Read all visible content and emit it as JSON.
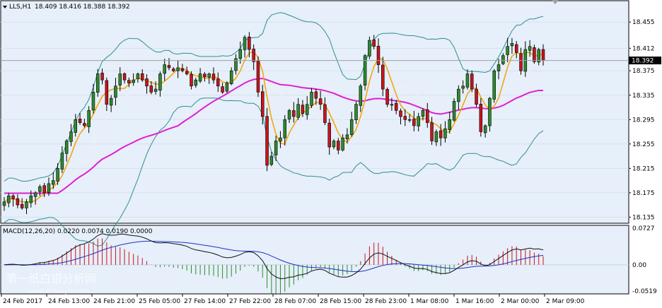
{
  "header": {
    "symbol_label": "LLS,H1",
    "ohlc": "18.409 18.416 18.388 18.392"
  },
  "watermark": {
    "text": "第一纸白银分析网",
    "subtext": "www.zhibaiyin.com"
  },
  "colors": {
    "background": "#ffffff",
    "plot_bg": "#e6effa",
    "up_candle": "#2e8b2e",
    "down_candle": "#c8141e",
    "bollinger": "#2f8f8f",
    "ma_fast": "#f5a300",
    "ma_slow": "#e020d0",
    "ma_light": "#f2f2f2",
    "macd_main": "#101010",
    "macd_signal": "#2030c8",
    "hist_pos": "#c8141e",
    "hist_neg": "#2e8b2e"
  },
  "chart_data": [
    {
      "type": "candlestick",
      "symbol": "LLS",
      "timeframe": "H1",
      "ylim": [
        18.125,
        18.49
      ],
      "y_ticks": [
        "18.455",
        "18.412",
        "18.375",
        "18.335",
        "18.295",
        "18.255",
        "18.215",
        "18.175",
        "18.135"
      ],
      "current_price": "18.392",
      "x_tick_labels": [
        "24 Feb 2017",
        "24 Feb 13:00",
        "24 Feb 21:00",
        "25 Feb 05:00",
        "27 Feb 14:00",
        "27 Feb 22:00",
        "28 Feb 07:00",
        "28 Feb 15:00",
        "28 Feb 23:00",
        "1 Mar 08:00",
        "1 Mar 16:00",
        "2 Mar 00:00",
        "2 Mar 09:00"
      ],
      "close": [
        18.16,
        18.17,
        18.165,
        18.155,
        18.15,
        18.16,
        18.17,
        18.175,
        18.185,
        18.175,
        18.19,
        18.195,
        18.215,
        18.24,
        18.26,
        18.275,
        18.295,
        18.29,
        18.285,
        18.31,
        18.34,
        18.37,
        18.36,
        18.32,
        18.33,
        18.35,
        18.37,
        18.36,
        18.355,
        18.36,
        18.37,
        18.36,
        18.35,
        18.34,
        18.345,
        18.37,
        18.385,
        18.38,
        18.375,
        18.38,
        18.375,
        18.37,
        18.35,
        18.36,
        18.37,
        18.365,
        18.37,
        18.36,
        18.35,
        18.34,
        18.355,
        18.375,
        18.395,
        18.41,
        18.43,
        18.41,
        18.39,
        18.34,
        18.3,
        18.22,
        18.235,
        18.26,
        18.265,
        18.295,
        18.31,
        18.3,
        18.32,
        18.305,
        18.32,
        18.34,
        18.33,
        18.32,
        18.29,
        18.25,
        18.26,
        18.245,
        18.265,
        18.27,
        18.295,
        18.32,
        18.35,
        18.4,
        18.425,
        18.415,
        18.385,
        18.345,
        18.32,
        18.32,
        18.31,
        18.3,
        18.295,
        18.295,
        18.285,
        18.3,
        18.31,
        18.29,
        18.26,
        18.275,
        18.265,
        18.28,
        18.295,
        18.325,
        18.345,
        18.35,
        18.37,
        18.345,
        18.32,
        18.275,
        18.285,
        18.33,
        18.375,
        18.385,
        18.4,
        18.415,
        18.42,
        18.405,
        18.375,
        18.41,
        18.415,
        18.39,
        18.41,
        18.392
      ],
      "bollinger": {
        "upper_start": 18.25,
        "upper_end": 18.45,
        "lower_start": 18.12,
        "lower_end": 18.26
      },
      "moving_averages": [
        {
          "color_key": "ma_fast"
        },
        {
          "color_key": "ma_slow"
        },
        {
          "color_key": "ma_light"
        }
      ]
    },
    {
      "type": "macd",
      "label": "MACD(12,26,20) 0.0220 0.0074 0.0190 0.0000",
      "params": [
        12,
        26,
        20
      ],
      "values": [
        0.022,
        0.0074,
        0.019,
        0.0
      ],
      "ylim": [
        -0.0519,
        0.0727
      ],
      "y_ticks": [
        "0.0727",
        "0.00",
        "-0.0519"
      ]
    }
  ]
}
